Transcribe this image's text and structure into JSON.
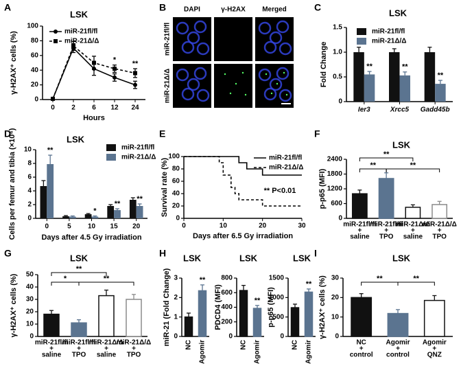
{
  "image_panel": {
    "panel_label": "B",
    "columns": [
      "DAPI",
      "γ-H2AX",
      "Merged"
    ],
    "rows": [
      "miR-21fl/fl",
      "miR-21Δ/Δ"
    ]
  },
  "chart_data": [
    {
      "type": "line",
      "panel_label": "A",
      "title": "LSK",
      "y_label": "γ-H2AX⁺ cells (%)",
      "x_label": "Hours",
      "categories": [
        "0",
        "2",
        "6",
        "12",
        "24"
      ],
      "ylim": [
        0,
        100
      ],
      "yticks": [
        0,
        20,
        40,
        60,
        80,
        100
      ],
      "series": [
        {
          "name": "miR-21fl/fl",
          "color": "#000000",
          "line_style": "solid",
          "marker": "circle",
          "values": [
            1,
            70,
            42,
            30,
            20
          ],
          "errors": [
            0.5,
            6,
            9,
            5,
            5
          ]
        },
        {
          "name": "miR-21Δ/Δ",
          "color": "#000000",
          "line_style": "dashed",
          "marker": "square",
          "values": [
            1,
            73,
            50,
            42,
            36
          ],
          "errors": [
            0.5,
            6,
            9,
            5,
            6
          ]
        }
      ],
      "annotations": [
        "*",
        "**"
      ]
    },
    {
      "type": "bar",
      "panel_label": "C",
      "title": "LSK",
      "y_label": "Fold Change",
      "italic_categories": true,
      "categories": [
        "Ier3",
        "Xrcc5",
        "Gadd45b"
      ],
      "ylim": [
        0,
        1.5
      ],
      "yticks": [
        0,
        0.5,
        {
          "value": 1,
          "label": "1.0"
        },
        1.5
      ],
      "series": [
        {
          "name": "miR-21fl/fl",
          "color": "#111111",
          "values": [
            1.0,
            1.0,
            1.0
          ],
          "errors": [
            0.1,
            0.07,
            0.1
          ]
        },
        {
          "name": "miR-21Δ/Δ",
          "color": "#5b7490",
          "values": [
            0.55,
            0.53,
            0.36
          ],
          "errors": [
            0.06,
            0.07,
            0.07
          ]
        }
      ],
      "annotations": [
        "**",
        "**",
        "**"
      ]
    },
    {
      "type": "bar",
      "panel_label": "D",
      "title": "LSK",
      "y_label": "Cells per femur and tibia (×10⁴)",
      "x_label": "Days after 4.5 Gy irradiation",
      "categories": [
        "0",
        "5",
        "10",
        "15",
        "20"
      ],
      "ylim": [
        0,
        10
      ],
      "yticks": [
        0,
        2,
        4,
        6,
        8,
        10
      ],
      "series": [
        {
          "name": "miR-21fl/fl",
          "color": "#111111",
          "values": [
            4.7,
            0.3,
            0.6,
            1.8,
            2.7
          ],
          "errors": [
            0.8,
            0.1,
            0.1,
            0.2,
            0.3
          ]
        },
        {
          "name": "miR-21Δ/Δ",
          "color": "#5b7490",
          "values": [
            7.9,
            0.25,
            0.25,
            1.2,
            1.8
          ],
          "errors": [
            1.3,
            0.1,
            0.1,
            0.2,
            0.3
          ]
        }
      ],
      "annotations": [
        "**",
        "*",
        "**",
        "**"
      ]
    },
    {
      "type": "line",
      "panel_label": "E",
      "y_label": "Survival rate (%)",
      "x_label": "Days after 6.5 Gy irradiation",
      "xlim": [
        0,
        30
      ],
      "xticks": [
        0,
        10,
        20,
        30
      ],
      "ylim": [
        0,
        100
      ],
      "yticks": [
        0,
        20,
        40,
        60,
        80,
        100
      ],
      "series": [
        {
          "name": "miR-21fl/fl",
          "color": "#000000",
          "line_style": "solid",
          "x": [
            0,
            14,
            14,
            16,
            16,
            20,
            20,
            30
          ],
          "values": [
            100,
            100,
            90,
            90,
            80,
            80,
            70,
            70
          ]
        },
        {
          "name": "miR-21Δ/Δ",
          "color": "#000000",
          "line_style": "dashed",
          "x": [
            0,
            9,
            9,
            10,
            10,
            12,
            12,
            13,
            13,
            14,
            14,
            20,
            20,
            30
          ],
          "values": [
            100,
            100,
            90,
            90,
            70,
            70,
            50,
            50,
            40,
            40,
            30,
            30,
            20,
            20
          ]
        }
      ],
      "annotations": [
        "** P<0.01"
      ]
    },
    {
      "type": "bar",
      "panel_label": "F",
      "title": "LSK",
      "y_label": "p-p65 (MFI)",
      "categories": [
        [
          "miR-21fl/fl",
          "+",
          "saline"
        ],
        [
          "miR-21fl/fl",
          "+",
          "TPO"
        ],
        [
          "miR-21Δ/Δ",
          "+",
          "saline"
        ],
        [
          "miR-21Δ/Δ",
          "+",
          "TPO"
        ]
      ],
      "ylim": [
        0,
        2400
      ],
      "yticks": [
        0,
        600,
        1200,
        1800,
        2400
      ],
      "values": [
        1000,
        1620,
        450,
        560
      ],
      "errors": [
        150,
        230,
        100,
        130
      ],
      "colors": [
        "#111111",
        "#5b7490",
        "#ffffff",
        "#ffffff"
      ],
      "edge_colors": [
        "#111111",
        "#5b7490",
        "#111111",
        "#8a8a8a"
      ],
      "annotations": [
        "**",
        "**",
        "**"
      ]
    },
    {
      "type": "bar",
      "panel_label": "G",
      "title": "LSK",
      "y_label": "γ-H2AX⁺ cells (%)",
      "categories": [
        [
          "miR-21fl/fl",
          "+",
          "saline"
        ],
        [
          "miR-21fl/fl",
          "+",
          "TPO"
        ],
        [
          "miR-21Δ/Δ",
          "+",
          "saline"
        ],
        [
          "miR-21Δ/Δ",
          "+",
          "TPO"
        ]
      ],
      "ylim": [
        0,
        50
      ],
      "yticks": [
        0,
        10,
        20,
        30,
        40,
        50
      ],
      "values": [
        18,
        11,
        33,
        30
      ],
      "errors": [
        3,
        2.5,
        4.5,
        4
      ],
      "colors": [
        "#111111",
        "#5b7490",
        "#ffffff",
        "#ffffff"
      ],
      "edge_colors": [
        "#111111",
        "#5b7490",
        "#111111",
        "#8a8a8a"
      ],
      "annotations": [
        "**",
        "*",
        "**"
      ]
    },
    {
      "type": "bar",
      "panel_label": "H",
      "title": "LSK",
      "y_label": "miR-21 (Fold Change)",
      "categories": [
        "NC",
        "Agomir"
      ],
      "ylim": [
        0,
        3
      ],
      "yticks": [
        0,
        1,
        2,
        3
      ],
      "values": [
        1.0,
        2.35
      ],
      "errors": [
        0.2,
        0.3
      ],
      "colors": [
        "#111111",
        "#5b7490"
      ],
      "edge_colors": [
        "#111111",
        "#5b7490"
      ],
      "annotations": [
        "**"
      ]
    },
    {
      "type": "bar",
      "title": "LSK",
      "y_label": "PDCD4 (MFI)",
      "categories": [
        "NC",
        "Agomir"
      ],
      "ylim": [
        0,
        800
      ],
      "yticks": [
        0,
        200,
        400,
        600,
        800
      ],
      "values": [
        630,
        385
      ],
      "errors": [
        70,
        40
      ],
      "colors": [
        "#111111",
        "#5b7490"
      ],
      "edge_colors": [
        "#111111",
        "#5b7490"
      ],
      "annotations": [
        "**"
      ]
    },
    {
      "type": "bar",
      "title": "LSK",
      "y_label": "p-p65 (MFI)",
      "categories": [
        "NC",
        "Agomir"
      ],
      "ylim": [
        0,
        1500
      ],
      "yticks": [
        0,
        500,
        1000,
        1500
      ],
      "values": [
        740,
        1140
      ],
      "errors": [
        90,
        80
      ],
      "colors": [
        "#111111",
        "#5b7490"
      ],
      "edge_colors": [
        "#111111",
        "#5b7490"
      ],
      "annotations": [
        "**"
      ]
    },
    {
      "type": "bar",
      "panel_label": "I",
      "title": "LSK",
      "y_label": "γ-H2AX⁺ cells (%)",
      "categories": [
        [
          "NC",
          "+",
          "control"
        ],
        [
          "Agomir",
          "+",
          "control"
        ],
        [
          "Agomir",
          "+",
          "QNZ"
        ]
      ],
      "ylim": [
        0,
        30
      ],
      "yticks": [
        0,
        10,
        20,
        30
      ],
      "values": [
        20,
        11.8,
        18.5
      ],
      "errors": [
        2,
        2,
        2.5
      ],
      "colors": [
        "#111111",
        "#5b7490",
        "#ffffff"
      ],
      "edge_colors": [
        "#111111",
        "#5b7490",
        "#111111"
      ],
      "annotations": [
        "**",
        "**"
      ]
    }
  ]
}
